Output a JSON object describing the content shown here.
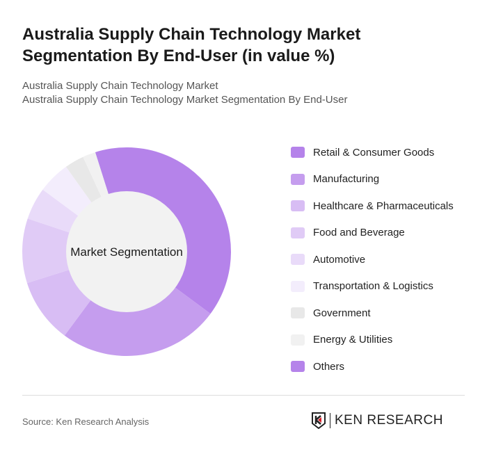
{
  "title": "Australia Supply Chain Technology Market Segmentation By End-User (in value %)",
  "subtitle1": "Australia Supply Chain Technology Market",
  "subtitle2": "Australia Supply Chain Technology Market Segmentation By End-User",
  "source": "Source: Ken Research Analysis",
  "logo_text": "KEN RESEARCH",
  "chart_data": {
    "type": "pie",
    "variant": "donut",
    "center_label": "Market Segmentation",
    "categories": [
      "Retail & Consumer Goods",
      "Manufacturing",
      "Healthcare & Pharmaceuticals",
      "Food and Beverage",
      "Automotive",
      "Transportation & Logistics",
      "Government",
      "Energy & Utilities",
      "Others"
    ],
    "values": [
      40,
      25,
      10,
      10,
      5,
      5,
      3,
      2,
      0
    ],
    "colors": [
      "#b583ea",
      "#c59dee",
      "#d8bdf4",
      "#e0cbf6",
      "#e9dbf9",
      "#f3edfc",
      "#e8e8e8",
      "#f1f1f1",
      "#b583ea"
    ],
    "legend_position": "right"
  }
}
